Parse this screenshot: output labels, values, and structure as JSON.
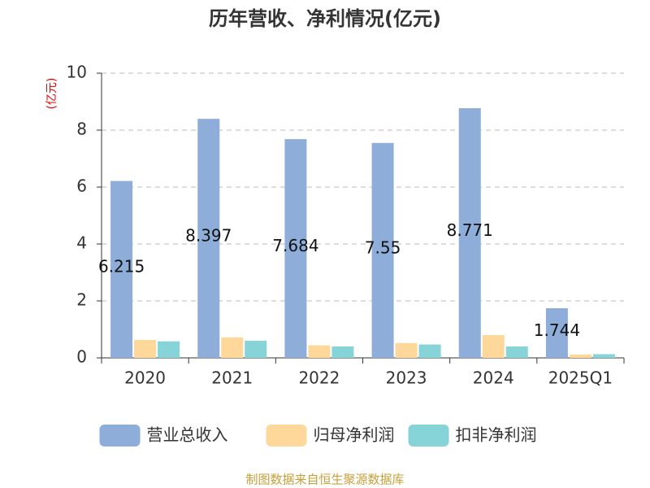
{
  "chart_data": {
    "type": "bar",
    "title": "历年营收、净利情况(亿元)",
    "y_label": "(亿元)",
    "categories": [
      "2020",
      "2021",
      "2022",
      "2023",
      "2024",
      "2025Q1"
    ],
    "series": [
      {
        "name": "营业总收入",
        "color": "#8eadd9",
        "values": [
          6.215,
          8.397,
          7.684,
          7.55,
          8.771,
          1.744
        ],
        "show_labels": true
      },
      {
        "name": "归母净利润",
        "color": "#fdd89a",
        "values": [
          0.63,
          0.72,
          0.44,
          0.52,
          0.8,
          0.12
        ]
      },
      {
        "name": "扣非净利润",
        "color": "#86d3d8",
        "values": [
          0.58,
          0.6,
          0.4,
          0.47,
          0.4,
          0.13
        ]
      }
    ],
    "ylim": [
      0,
      10
    ],
    "yticks": [
      0,
      2,
      4,
      6,
      8,
      10
    ],
    "grid": true,
    "source": "制图数据来自恒生聚源数据库"
  }
}
